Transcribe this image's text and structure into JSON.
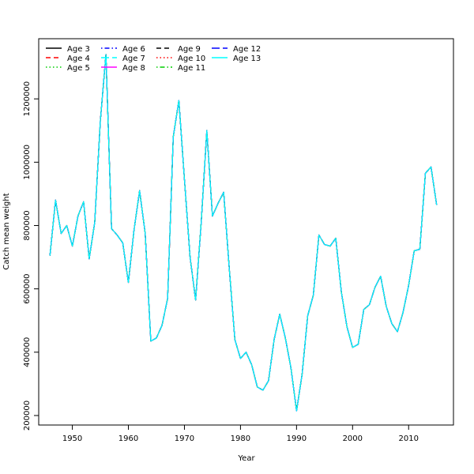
{
  "chart_data": {
    "type": "line",
    "title": "",
    "xlabel": "Year",
    "ylabel": "Catch mean weight",
    "xlim": [
      1944,
      2018
    ],
    "ylim": [
      170000,
      1390000
    ],
    "x_ticks": [
      1950,
      1960,
      1970,
      1980,
      1990,
      2000,
      2010
    ],
    "y_ticks": [
      200000,
      400000,
      600000,
      800000,
      1000000,
      1200000
    ],
    "x_tick_labels": [
      "1950",
      "1960",
      "1970",
      "1980",
      "1990",
      "2000",
      "2010"
    ],
    "y_tick_labels": [
      "200000",
      "400000",
      "600000",
      "800000",
      "1000000",
      "1200000"
    ],
    "grid": false,
    "legend_position": "top-left",
    "x": [
      1946,
      1947,
      1948,
      1949,
      1950,
      1951,
      1952,
      1953,
      1954,
      1955,
      1956,
      1957,
      1958,
      1959,
      1960,
      1961,
      1962,
      1963,
      1964,
      1965,
      1966,
      1967,
      1968,
      1969,
      1970,
      1971,
      1972,
      1973,
      1974,
      1975,
      1976,
      1977,
      1978,
      1979,
      1980,
      1981,
      1982,
      1983,
      1984,
      1985,
      1986,
      1987,
      1988,
      1989,
      1990,
      1991,
      1992,
      1993,
      1994,
      1995,
      1996,
      1997,
      1998,
      1999,
      2000,
      2001,
      2002,
      2003,
      2004,
      2005,
      2006,
      2007,
      2008,
      2009,
      2010,
      2011,
      2012,
      2013,
      2014,
      2015
    ],
    "shared_values": [
      705000,
      880000,
      775000,
      800000,
      735000,
      830000,
      875000,
      695000,
      810000,
      1130000,
      1340000,
      790000,
      770000,
      745000,
      620000,
      785000,
      910000,
      775000,
      435000,
      445000,
      485000,
      570000,
      1080000,
      1195000,
      945000,
      700000,
      565000,
      810000,
      1100000,
      830000,
      870000,
      905000,
      665000,
      440000,
      380000,
      400000,
      360000,
      290000,
      280000,
      310000,
      440000,
      520000,
      445000,
      350000,
      215000,
      330000,
      515000,
      580000,
      770000,
      740000,
      735000,
      760000,
      590000,
      480000,
      415000,
      425000,
      535000,
      550000,
      605000,
      640000,
      545000,
      490000,
      465000,
      525000,
      610000,
      720000,
      725000,
      965000,
      985000,
      865000
    ],
    "series": [
      {
        "name": "Age 3",
        "color": "#000000",
        "dash": "solid"
      },
      {
        "name": "Age 4",
        "color": "#ff0000",
        "dash": "dashed"
      },
      {
        "name": "Age 5",
        "color": "#00cd00",
        "dash": "dotted"
      },
      {
        "name": "Age 6",
        "color": "#0000ff",
        "dash": "dotdash"
      },
      {
        "name": "Age 7",
        "color": "#00ffff",
        "dash": "longdash"
      },
      {
        "name": "Age 8",
        "color": "#ff00ff",
        "dash": "solid"
      },
      {
        "name": "Age 9",
        "color": "#000000",
        "dash": "dashed"
      },
      {
        "name": "Age 10",
        "color": "#ff0000",
        "dash": "dotted"
      },
      {
        "name": "Age 11",
        "color": "#00cd00",
        "dash": "dotdash"
      },
      {
        "name": "Age 12",
        "color": "#0000ff",
        "dash": "longdash"
      },
      {
        "name": "Age 13",
        "color": "#00ffff",
        "dash": "solid"
      }
    ]
  }
}
